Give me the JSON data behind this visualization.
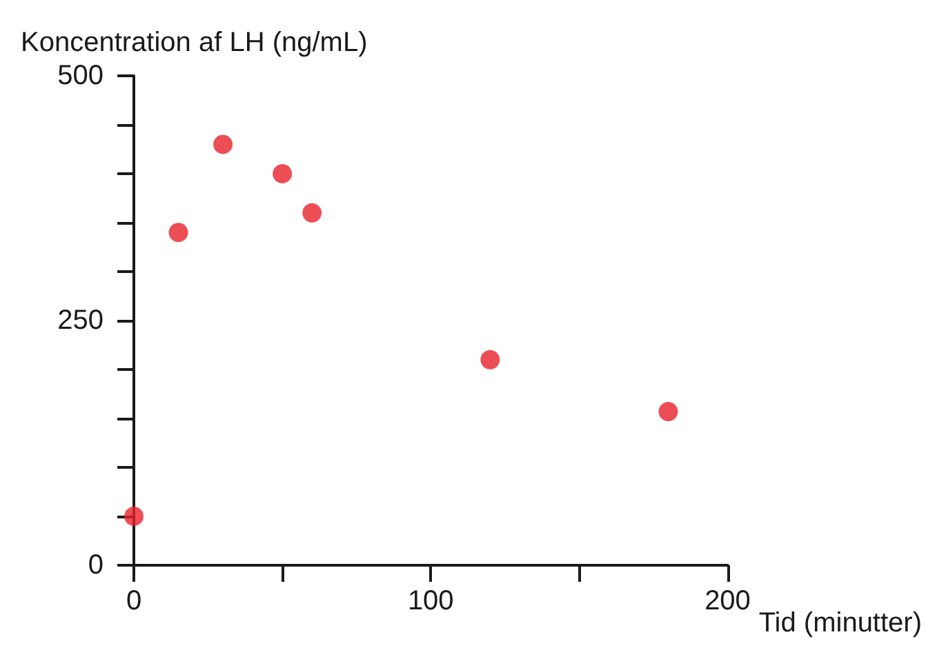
{
  "chart_data": {
    "type": "scatter",
    "xlabel": "Tid (minutter)",
    "ylabel": "Koncentration af LH (ng/mL)",
    "x": [
      0,
      15,
      30,
      50,
      60,
      120,
      180
    ],
    "series": [
      {
        "color": "#e8202a",
        "values": [
          50,
          340,
          430,
          400,
          360,
          210,
          157
        ]
      }
    ],
    "xlim": [
      0,
      200
    ],
    "xticks": [
      0,
      {
        "value": 50,
        "label": null
      },
      100,
      {
        "value": 150,
        "label": null
      },
      200
    ],
    "ylim": [
      0,
      500
    ],
    "yticks": [
      0,
      {
        "value": 50,
        "label": null
      },
      {
        "value": 100,
        "label": null
      },
      {
        "value": 150,
        "label": null
      },
      {
        "value": 200,
        "label": null
      },
      250,
      {
        "value": 300,
        "label": null
      },
      {
        "value": 350,
        "label": null
      },
      {
        "value": 400,
        "label": null
      },
      {
        "value": 450,
        "label": null
      },
      500
    ],
    "grid": false,
    "marker": "circle"
  }
}
